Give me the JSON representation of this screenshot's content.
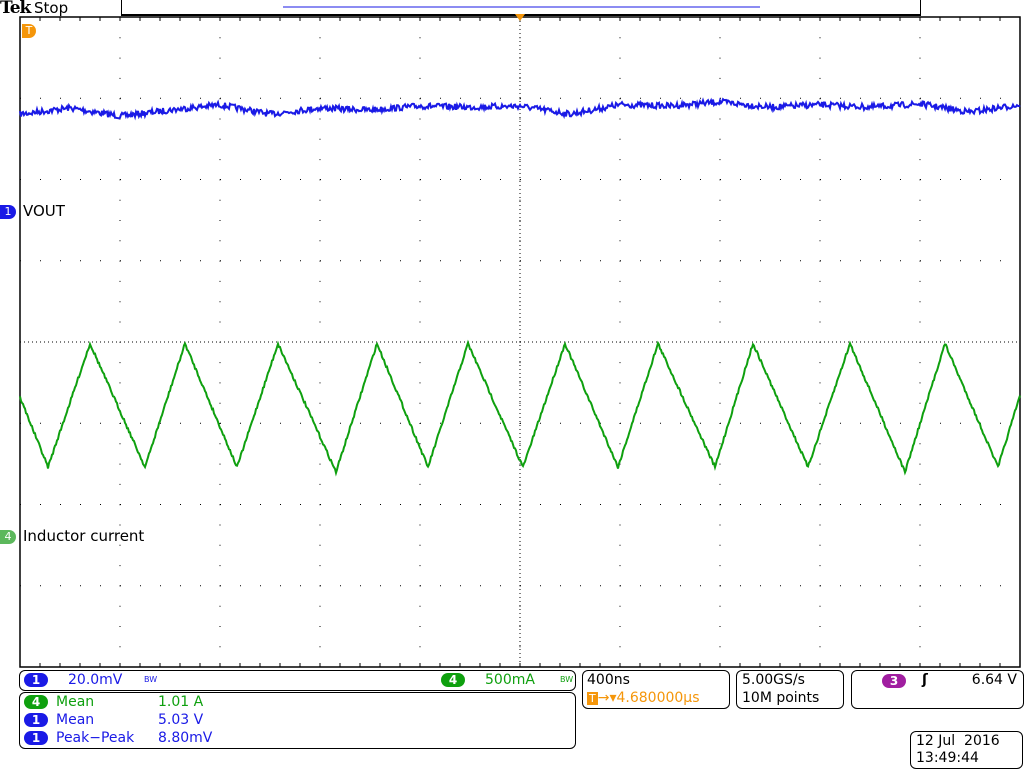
{
  "header": {
    "brand": "Tek",
    "status": "Stop"
  },
  "channels": {
    "ch1": {
      "number": "1",
      "label": "VOUT",
      "scale": "20.0mV",
      "bw": "BW",
      "color": "#1a1ae6"
    },
    "ch4": {
      "number": "4",
      "label": "Inductor current",
      "scale": "500mA",
      "bw": "BW",
      "color": "#0fa00f"
    },
    "trigger_marker": "T"
  },
  "measurements": [
    {
      "channel": "4",
      "name": "Mean",
      "value": "1.01 A",
      "color": "#0fa00f"
    },
    {
      "channel": "1",
      "name": "Mean",
      "value": "5.03 V",
      "color": "#1a1ae6"
    },
    {
      "channel": "1",
      "name": "Peak−Peak",
      "value": "8.80mV",
      "color": "#1a1ae6"
    }
  ],
  "timebase": {
    "scale": "400ns",
    "trigger_pos_icon": "T",
    "trigger_delay": "4.680000µs"
  },
  "acquisition": {
    "sample_rate": "5.00GS/s",
    "record_length": "10M points"
  },
  "trigger": {
    "channel": "3",
    "slope_icon": "rising-edge",
    "level": "6.64 V",
    "channel_color": "#a01ea0"
  },
  "datetime": {
    "date": "12 Jul  2016",
    "time": "13:49:44"
  },
  "chart_data": {
    "type": "line",
    "grid": true,
    "x_unit": "ns",
    "x_per_div": 400,
    "xlim": [
      0,
      4000
    ],
    "series": [
      {
        "name": "VOUT",
        "unit": "mV",
        "per_div": 20,
        "color": "#1a1ae6",
        "x": [
          0,
          200,
          400,
          600,
          800,
          1000,
          1200,
          1400,
          1600,
          1800,
          2000,
          2200,
          2400,
          2600,
          2800,
          3000,
          3200,
          3400,
          3600,
          3800,
          4000
        ],
        "y": [
          24.1,
          25.6,
          23.6,
          25.1,
          26.4,
          24.1,
          25.6,
          25.1,
          26.1,
          25.8,
          26.1,
          24.1,
          26.4,
          26.1,
          27.1,
          25.8,
          26.4,
          25.8,
          26.6,
          24.6,
          26.4
        ]
      },
      {
        "name": "Inductor current",
        "unit": "A",
        "per_div": 0.5,
        "color": "#0fa00f",
        "x": [
          0,
          112,
          280,
          500,
          660,
          868,
          1032,
          1264,
          1428,
          1632,
          1792,
          2012,
          2180,
          2392,
          2552,
          2780,
          2932,
          3152,
          3320,
          3540,
          3700,
          3912,
          4000
        ],
        "y": [
          0.86,
          0.43,
          1.19,
          0.43,
          1.19,
          0.43,
          1.19,
          0.4,
          1.19,
          0.43,
          1.19,
          0.43,
          1.19,
          0.43,
          1.19,
          0.43,
          1.19,
          0.43,
          1.19,
          0.4,
          1.19,
          0.43,
          0.87
        ]
      }
    ]
  }
}
